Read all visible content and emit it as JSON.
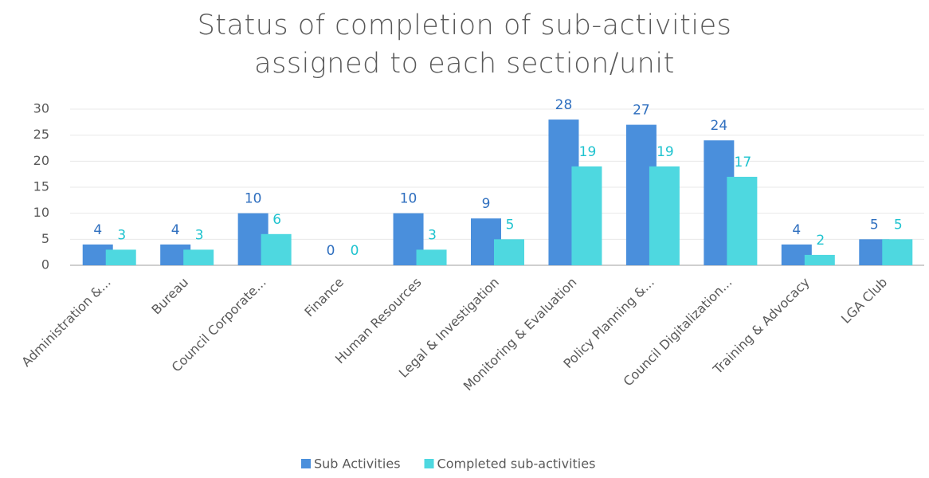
{
  "chart_data": {
    "type": "bar",
    "title": "Status of completion of sub-activities assigned to each section/unit",
    "categories": [
      "Administration &...",
      "Bureau",
      "Council Corporate...",
      "Finance",
      "Human Resources",
      "Legal & Investigation",
      "Monitoring & Evaluation",
      "Policy Planning &...",
      "Council Digitalization...",
      "Training & Advocacy",
      "LGA Club"
    ],
    "series": [
      {
        "name": "Sub Activities",
        "color": "#4a8fdc",
        "label_color": "#2f6fbf",
        "values": [
          4,
          4,
          10,
          0,
          10,
          9,
          28,
          27,
          24,
          4,
          5
        ]
      },
      {
        "name": "Completed sub-activities",
        "color": "#4ed8e0",
        "label_color": "#1fc3cf",
        "values": [
          3,
          3,
          6,
          0,
          3,
          5,
          19,
          19,
          17,
          2,
          5
        ]
      }
    ],
    "ylim": [
      0,
      30
    ],
    "yticks": [
      0,
      5,
      10,
      15,
      20,
      25,
      30
    ],
    "grid": true,
    "legend": "bottom"
  }
}
